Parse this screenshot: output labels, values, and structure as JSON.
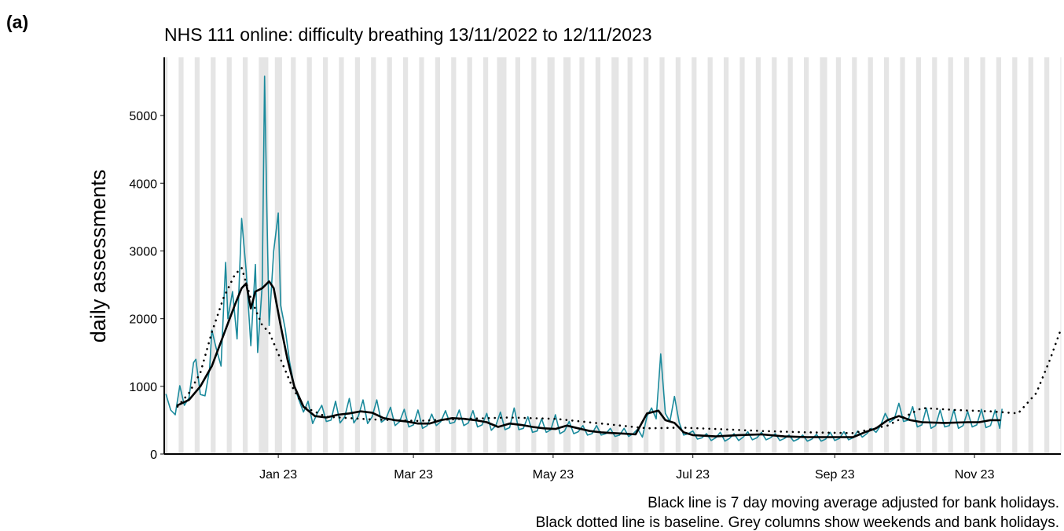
{
  "panel_label": "(a)",
  "chart_data": {
    "type": "line",
    "title": "NHS 111 online: difficulty breathing 13/11/2022 to 12/11/2023",
    "y_label": "daily assessments",
    "annotations": [
      "Black line is 7 day moving average adjusted for bank holidays.",
      "Black dotted line is baseline. Grey columns show weekends and bank holidays."
    ],
    "xlim": [
      -0.8,
      390.7
    ],
    "xticks": [
      {
        "value": 49,
        "label": "Jan 23"
      },
      {
        "value": 108,
        "label": "Mar 23"
      },
      {
        "value": 169,
        "label": "May 23"
      },
      {
        "value": 230,
        "label": "Jul 23"
      },
      {
        "value": 292,
        "label": "Sep 23"
      },
      {
        "value": 353,
        "label": "Nov 23"
      }
    ],
    "ylim": [
      0,
      5860
    ],
    "yticks": [
      0,
      1000,
      2000,
      3000,
      4000,
      5000
    ],
    "shade_color": "#e5e5e5",
    "shaded_days": [
      0,
      7,
      14,
      21,
      28,
      35,
      42,
      49,
      56,
      63,
      70,
      77,
      84,
      91,
      98,
      105,
      112,
      119,
      126,
      133,
      140,
      147,
      154,
      161,
      168,
      175,
      182,
      189,
      196,
      203,
      210,
      217,
      224,
      231,
      238,
      245,
      252,
      259,
      266,
      273,
      280,
      287,
      294,
      301,
      308,
      315,
      322,
      329,
      336,
      343,
      350,
      357,
      364,
      371,
      378,
      385,
      6,
      13,
      20,
      27,
      34,
      41,
      48,
      55,
      62,
      69,
      76,
      83,
      90,
      97,
      104,
      111,
      118,
      125,
      132,
      139,
      146,
      153,
      160,
      167,
      174,
      181,
      188,
      195,
      202,
      209,
      216,
      223,
      230,
      237,
      244,
      251,
      258,
      265,
      272,
      279,
      286,
      293,
      300,
      307,
      314,
      321,
      328,
      335,
      342,
      349,
      356,
      363,
      370,
      377,
      384,
      391,
      43,
      44,
      50,
      145,
      148,
      169,
      176,
      197,
      288
    ],
    "series": [
      {
        "color": "#1b8a9c",
        "style": "solid",
        "width": 1.6,
        "x": [
          0,
          2,
          4,
          6,
          8,
          10,
          12,
          13,
          15,
          17,
          19,
          20,
          22,
          24,
          26,
          27,
          29,
          31,
          33,
          35,
          37,
          39,
          40,
          42,
          43,
          44,
          45,
          47,
          49,
          50,
          52,
          54,
          56,
          58,
          60,
          62,
          64,
          66,
          68,
          70,
          72,
          74,
          76,
          78,
          80,
          82,
          84,
          86,
          88,
          90,
          92,
          94,
          96,
          98,
          100,
          102,
          104,
          106,
          108,
          110,
          112,
          114,
          116,
          118,
          120,
          122,
          124,
          126,
          128,
          130,
          132,
          134,
          136,
          138,
          140,
          142,
          144,
          146,
          148,
          150,
          152,
          154,
          156,
          158,
          160,
          162,
          164,
          166,
          168,
          170,
          172,
          174,
          176,
          178,
          180,
          182,
          184,
          186,
          188,
          190,
          192,
          194,
          196,
          198,
          200,
          202,
          204,
          206,
          208,
          210,
          212,
          214,
          216,
          218,
          220,
          222,
          224,
          226,
          228,
          230,
          232,
          234,
          236,
          238,
          240,
          242,
          244,
          246,
          248,
          250,
          252,
          254,
          256,
          258,
          260,
          262,
          264,
          266,
          268,
          270,
          272,
          274,
          276,
          278,
          280,
          282,
          284,
          286,
          288,
          290,
          292,
          294,
          296,
          298,
          300,
          302,
          304,
          306,
          308,
          310,
          312,
          314,
          316,
          318,
          320,
          322,
          324,
          326,
          328,
          330,
          332,
          334,
          336,
          338,
          340,
          342,
          344,
          346,
          348,
          350,
          352,
          354,
          356,
          358,
          360,
          362,
          364,
          365
        ],
        "values": [
          880,
          650,
          580,
          1010,
          720,
          830,
          1350,
          1400,
          880,
          860,
          1250,
          1830,
          1550,
          1300,
          2830,
          2000,
          2400,
          1700,
          3480,
          2700,
          1600,
          2800,
          1500,
          2500,
          5580,
          3600,
          1900,
          3000,
          3560,
          2200,
          1850,
          1350,
          1000,
          800,
          620,
          780,
          450,
          600,
          720,
          480,
          500,
          780,
          460,
          550,
          820,
          460,
          560,
          800,
          450,
          550,
          800,
          470,
          520,
          690,
          420,
          480,
          660,
          400,
          430,
          650,
          380,
          420,
          590,
          420,
          480,
          640,
          450,
          470,
          650,
          420,
          460,
          640,
          400,
          430,
          600,
          350,
          420,
          620,
          360,
          390,
          680,
          360,
          380,
          550,
          320,
          340,
          520,
          320,
          360,
          580,
          300,
          340,
          480,
          300,
          330,
          420,
          280,
          300,
          420,
          280,
          300,
          380,
          260,
          280,
          380,
          260,
          300,
          370,
          250,
          560,
          680,
          520,
          1480,
          600,
          480,
          850,
          470,
          280,
          300,
          340,
          220,
          240,
          300,
          200,
          240,
          320,
          190,
          230,
          300,
          200,
          250,
          330,
          210,
          240,
          320,
          210,
          240,
          300,
          200,
          230,
          280,
          190,
          220,
          280,
          190,
          220,
          290,
          190,
          220,
          320,
          200,
          230,
          330,
          210,
          240,
          340,
          250,
          300,
          380,
          320,
          420,
          600,
          470,
          520,
          750,
          480,
          500,
          700,
          400,
          430,
          680,
          380,
          420,
          650,
          400,
          420,
          650,
          380,
          420,
          630,
          400,
          430,
          660,
          390,
          420,
          650,
          380,
          660
        ]
      },
      {
        "color": "#000000",
        "style": "solid",
        "width": 2.6,
        "x": [
          5,
          10,
          15,
          20,
          25,
          30,
          33,
          35,
          37,
          39,
          42,
          45,
          47,
          50,
          53,
          56,
          60,
          65,
          70,
          75,
          80,
          85,
          90,
          95,
          100,
          105,
          110,
          115,
          120,
          125,
          130,
          135,
          140,
          145,
          150,
          155,
          160,
          165,
          170,
          175,
          180,
          185,
          190,
          195,
          200,
          205,
          210,
          215,
          218,
          222,
          226,
          230,
          240,
          250,
          260,
          270,
          280,
          290,
          300,
          305,
          310,
          315,
          320,
          325,
          330,
          340,
          350,
          355,
          360,
          364
        ],
        "values": [
          720,
          800,
          1000,
          1300,
          1750,
          2200,
          2450,
          2520,
          2150,
          2400,
          2450,
          2550,
          2450,
          1900,
          1400,
          1000,
          700,
          560,
          540,
          580,
          600,
          630,
          610,
          530,
          500,
          480,
          450,
          450,
          500,
          530,
          520,
          500,
          470,
          400,
          450,
          430,
          400,
          380,
          370,
          420,
          380,
          340,
          320,
          310,
          300,
          290,
          600,
          640,
          500,
          460,
          320,
          280,
          260,
          280,
          290,
          260,
          250,
          250,
          250,
          320,
          380,
          500,
          560,
          500,
          470,
          460,
          470,
          470,
          500,
          500
        ]
      },
      {
        "color": "#000000",
        "style": "dotted",
        "width": 2.6,
        "x": [
          5,
          10,
          15,
          20,
          25,
          30,
          33,
          37,
          42,
          45,
          50,
          55,
          60,
          70,
          90,
          110,
          130,
          150,
          170,
          190,
          210,
          225,
          240,
          260,
          280,
          300,
          315,
          330,
          345,
          360,
          372,
          380,
          386,
          391
        ],
        "values": [
          700,
          900,
          1200,
          1800,
          2300,
          2650,
          2750,
          2300,
          1900,
          1800,
          1400,
          1000,
          700,
          550,
          510,
          490,
          520,
          540,
          520,
          450,
          380,
          390,
          370,
          340,
          320,
          310,
          420,
          680,
          650,
          630,
          600,
          900,
          1400,
          1870
        ]
      }
    ]
  }
}
